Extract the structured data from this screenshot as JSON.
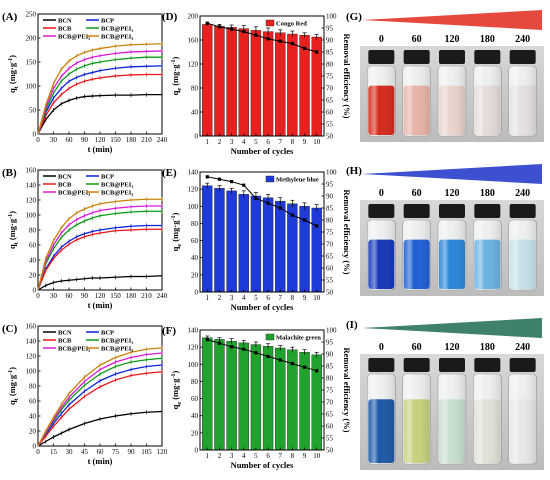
{
  "chart_data": [
    {
      "panel": "(A)",
      "type": "line",
      "xlabel": "t (min)",
      "ylabel": "q_t (mg g⁻¹)",
      "xlim": [
        0,
        240
      ],
      "ylim": [
        0,
        250
      ],
      "xticks": [
        0,
        30,
        60,
        90,
        120,
        150,
        180,
        210,
        240
      ],
      "yticks": [
        0,
        50,
        100,
        150,
        200,
        250
      ],
      "legend": {
        "placement": "top-left",
        "columns": 2
      },
      "series": [
        {
          "name": "BCN",
          "color": "#000000",
          "x": [
            0,
            15,
            30,
            45,
            60,
            75,
            90,
            105,
            120,
            150,
            180,
            210,
            240
          ],
          "y": [
            0,
            30,
            50,
            63,
            70,
            75,
            78,
            79,
            80,
            81,
            81,
            82,
            82
          ]
        },
        {
          "name": "BCP",
          "color": "#0a22d8",
          "x": [
            0,
            15,
            30,
            45,
            60,
            75,
            90,
            105,
            120,
            150,
            180,
            210,
            240
          ],
          "y": [
            0,
            45,
            75,
            95,
            110,
            118,
            124,
            128,
            132,
            137,
            140,
            141,
            142
          ]
        },
        {
          "name": "BCB",
          "color": "#e8161b",
          "x": [
            0,
            15,
            30,
            45,
            60,
            75,
            90,
            105,
            120,
            150,
            180,
            210,
            240
          ],
          "y": [
            0,
            38,
            65,
            82,
            95,
            104,
            110,
            114,
            117,
            121,
            123,
            124,
            124
          ]
        },
        {
          "name": "BCB@PEI₁",
          "color": "#0d9a18",
          "x": [
            0,
            15,
            30,
            45,
            60,
            75,
            90,
            105,
            120,
            150,
            180,
            210,
            240
          ],
          "y": [
            0,
            50,
            85,
            110,
            125,
            135,
            142,
            147,
            150,
            155,
            158,
            160,
            160
          ]
        },
        {
          "name": "BCB@PEI₂",
          "color": "#d81ad8",
          "x": [
            0,
            15,
            30,
            45,
            60,
            75,
            90,
            105,
            120,
            150,
            180,
            210,
            240
          ],
          "y": [
            0,
            55,
            95,
            120,
            137,
            148,
            155,
            160,
            163,
            168,
            171,
            172,
            173
          ]
        },
        {
          "name": "BCB@PEI₃",
          "color": "#c8820a",
          "x": [
            0,
            15,
            30,
            45,
            60,
            75,
            90,
            105,
            120,
            150,
            180,
            210,
            240
          ],
          "y": [
            0,
            60,
            105,
            135,
            152,
            163,
            170,
            175,
            178,
            183,
            186,
            187,
            188
          ]
        }
      ]
    },
    {
      "panel": "(B)",
      "type": "line",
      "xlabel": "t (min)",
      "ylabel": "q_t (mg g⁻¹)",
      "xlim": [
        0,
        240
      ],
      "ylim": [
        0,
        160
      ],
      "xticks": [
        0,
        30,
        60,
        90,
        120,
        150,
        180,
        210,
        240
      ],
      "yticks": [
        0,
        20,
        40,
        60,
        80,
        100,
        120,
        140,
        160
      ],
      "legend": {
        "placement": "top-left",
        "columns": 2
      },
      "series": [
        {
          "name": "BCN",
          "color": "#000000",
          "x": [
            0,
            15,
            30,
            45,
            60,
            75,
            90,
            105,
            120,
            150,
            180,
            210,
            240
          ],
          "y": [
            0,
            6,
            10,
            12,
            13,
            14,
            15,
            16,
            16,
            17,
            18,
            18,
            19
          ]
        },
        {
          "name": "BCP",
          "color": "#0a22d8",
          "x": [
            0,
            15,
            30,
            45,
            60,
            75,
            90,
            105,
            120,
            150,
            180,
            210,
            240
          ],
          "y": [
            0,
            28,
            45,
            57,
            65,
            71,
            75,
            78,
            80,
            83,
            85,
            86,
            86
          ]
        },
        {
          "name": "BCB",
          "color": "#e8161b",
          "x": [
            0,
            15,
            30,
            45,
            60,
            75,
            90,
            105,
            120,
            150,
            180,
            210,
            240
          ],
          "y": [
            0,
            26,
            42,
            53,
            61,
            67,
            71,
            74,
            76,
            79,
            80,
            81,
            81
          ]
        },
        {
          "name": "BCB@PEI₁",
          "color": "#0d9a18",
          "x": [
            0,
            15,
            30,
            45,
            60,
            75,
            90,
            105,
            120,
            150,
            180,
            210,
            240
          ],
          "y": [
            0,
            35,
            55,
            70,
            80,
            87,
            92,
            96,
            99,
            102,
            104,
            105,
            105
          ]
        },
        {
          "name": "BCB@PEI₂",
          "color": "#d81ad8",
          "x": [
            0,
            15,
            30,
            45,
            60,
            75,
            90,
            105,
            120,
            150,
            180,
            210,
            240
          ],
          "y": [
            0,
            38,
            60,
            76,
            87,
            94,
            99,
            103,
            106,
            109,
            111,
            112,
            112
          ]
        },
        {
          "name": "BCB@PEI₃",
          "color": "#c8820a",
          "x": [
            0,
            15,
            30,
            45,
            60,
            75,
            90,
            105,
            120,
            150,
            180,
            210,
            240
          ],
          "y": [
            0,
            42,
            66,
            83,
            95,
            103,
            108,
            112,
            115,
            118,
            120,
            121,
            121
          ]
        }
      ]
    },
    {
      "panel": "(C)",
      "type": "line",
      "xlabel": "t (min)",
      "ylabel": "q_t (mg g⁻¹)",
      "xlim": [
        0,
        120
      ],
      "ylim": [
        0,
        160
      ],
      "xticks": [
        0,
        15,
        30,
        45,
        60,
        75,
        90,
        105,
        120
      ],
      "yticks": [
        0,
        20,
        40,
        60,
        80,
        100,
        120,
        140,
        160
      ],
      "legend": {
        "placement": "top-left",
        "columns": 2
      },
      "series": [
        {
          "name": "BCN",
          "color": "#000000",
          "x": [
            0,
            7.5,
            15,
            22.5,
            30,
            45,
            60,
            75,
            90,
            105,
            120
          ],
          "y": [
            0,
            6,
            12,
            17,
            22,
            30,
            36,
            40,
            43,
            45,
            46
          ]
        },
        {
          "name": "BCP",
          "color": "#0a22d8",
          "x": [
            0,
            7.5,
            15,
            22.5,
            30,
            45,
            60,
            75,
            90,
            105,
            120
          ],
          "y": [
            0,
            15,
            30,
            43,
            55,
            73,
            87,
            96,
            102,
            106,
            108
          ]
        },
        {
          "name": "BCB",
          "color": "#e8161b",
          "x": [
            0,
            7.5,
            15,
            22.5,
            30,
            45,
            60,
            75,
            90,
            105,
            120
          ],
          "y": [
            0,
            13,
            26,
            38,
            49,
            66,
            79,
            88,
            94,
            97,
            99
          ]
        },
        {
          "name": "BCB@PEI₁",
          "color": "#0d9a18",
          "x": [
            0,
            7.5,
            15,
            22.5,
            30,
            45,
            60,
            75,
            90,
            105,
            120
          ],
          "y": [
            0,
            17,
            33,
            48,
            61,
            81,
            96,
            106,
            112,
            115,
            117
          ]
        },
        {
          "name": "BCB@PEI₂",
          "color": "#d81ad8",
          "x": [
            0,
            7.5,
            15,
            22.5,
            30,
            45,
            60,
            75,
            90,
            105,
            120
          ],
          "y": [
            0,
            18,
            35,
            51,
            65,
            86,
            102,
            112,
            118,
            122,
            124
          ]
        },
        {
          "name": "BCB@PEI₃",
          "color": "#c8820a",
          "x": [
            0,
            7.5,
            15,
            22.5,
            30,
            45,
            60,
            75,
            90,
            105,
            120
          ],
          "y": [
            0,
            20,
            38,
            55,
            70,
            92,
            108,
            118,
            125,
            129,
            131
          ]
        }
      ]
    },
    {
      "panel": "(D)",
      "type": "bar",
      "legend_label": "Congo Red",
      "bar_color": "#e8201e",
      "xlabel": "Number of cycles",
      "ylabel": "q_e (mg g⁻¹)",
      "ylabel_right": "Removal efficiency (%)",
      "categories": [
        1,
        2,
        3,
        4,
        5,
        6,
        7,
        8,
        9,
        10
      ],
      "ylim": [
        0,
        200
      ],
      "yticks": [
        0,
        40,
        80,
        120,
        160,
        200
      ],
      "ylim_right": [
        50,
        100
      ],
      "yticks_right": [
        50,
        55,
        60,
        65,
        70,
        75,
        80,
        85,
        90,
        95,
        100
      ],
      "values": [
        186,
        183,
        181,
        179,
        176,
        174,
        172,
        170,
        168,
        165
      ],
      "errors": [
        2,
        3,
        4,
        5,
        6,
        6,
        5,
        5,
        4,
        4
      ],
      "efficiency": [
        97,
        95.5,
        94.5,
        93.5,
        92,
        90.5,
        89.5,
        88.5,
        86.5,
        85
      ]
    },
    {
      "panel": "(E)",
      "type": "bar",
      "legend_label": "Methylene blue",
      "bar_color": "#1e3ad8",
      "xlabel": "Number of cycles",
      "ylabel": "q_e (mg g⁻¹)",
      "ylabel_right": "Removal efficiency (%)",
      "categories": [
        1,
        2,
        3,
        4,
        5,
        6,
        7,
        8,
        9,
        10
      ],
      "ylim": [
        0,
        140
      ],
      "yticks": [
        0,
        20,
        40,
        60,
        80,
        100,
        120,
        140
      ],
      "ylim_right": [
        50,
        100
      ],
      "yticks_right": [
        50,
        55,
        60,
        65,
        70,
        75,
        80,
        85,
        90,
        95,
        100
      ],
      "values": [
        124,
        121,
        118,
        114,
        112,
        110,
        106,
        103,
        100,
        98
      ],
      "errors": [
        3,
        3,
        3,
        4,
        4,
        4,
        4,
        4,
        4,
        4
      ],
      "efficiency": [
        98,
        97,
        96,
        94.5,
        89,
        87,
        85,
        82,
        80,
        77.5
      ]
    },
    {
      "panel": "(F)",
      "type": "bar",
      "legend_label": "Malachite green",
      "bar_color": "#1fa32c",
      "xlabel": "Number of cycles",
      "ylabel": "q_e (mg g⁻¹)",
      "ylabel_right": "Removal efficiency (%)",
      "categories": [
        1,
        2,
        3,
        4,
        5,
        6,
        7,
        8,
        9,
        10
      ],
      "ylim": [
        0,
        140
      ],
      "yticks": [
        0,
        20,
        40,
        60,
        80,
        100,
        120,
        140
      ],
      "ylim_right": [
        50,
        100
      ],
      "yticks_right": [
        50,
        55,
        60,
        65,
        70,
        75,
        80,
        85,
        90,
        95,
        100
      ],
      "values": [
        131,
        129,
        127,
        125,
        123,
        121,
        119,
        117,
        114,
        111
      ],
      "errors": [
        2,
        2,
        3,
        3,
        3,
        3,
        3,
        3,
        3,
        3
      ],
      "efficiency": [
        96,
        94.5,
        93,
        92,
        90.5,
        89,
        87.5,
        86,
        84.5,
        83
      ]
    }
  ],
  "vial_panels": [
    {
      "panel": "(G)",
      "labels": [
        "0",
        "60",
        "120",
        "180",
        "240"
      ],
      "wedge_color": "#e0291c",
      "liquid_colors": [
        "#d42a1c",
        "#e8b3a8",
        "#ead3cd",
        "#e5dcd9",
        "#e4e1e0"
      ]
    },
    {
      "panel": "(H)",
      "labels": [
        "0",
        "60",
        "120",
        "180",
        "240"
      ],
      "wedge_color": "#1b33c8",
      "liquid_colors": [
        "#1437b8",
        "#1f5fd6",
        "#2a86d8",
        "#69b3e0",
        "#c6e0ea"
      ]
    },
    {
      "panel": "(I)",
      "labels": [
        "0",
        "60",
        "120",
        "180",
        "240"
      ],
      "wedge_color": "#1e6b50",
      "liquid_colors": [
        "#1d58a6",
        "#c8d17c",
        "#c8dfcf",
        "#e0e2d7",
        "#e6e8e8"
      ]
    }
  ]
}
